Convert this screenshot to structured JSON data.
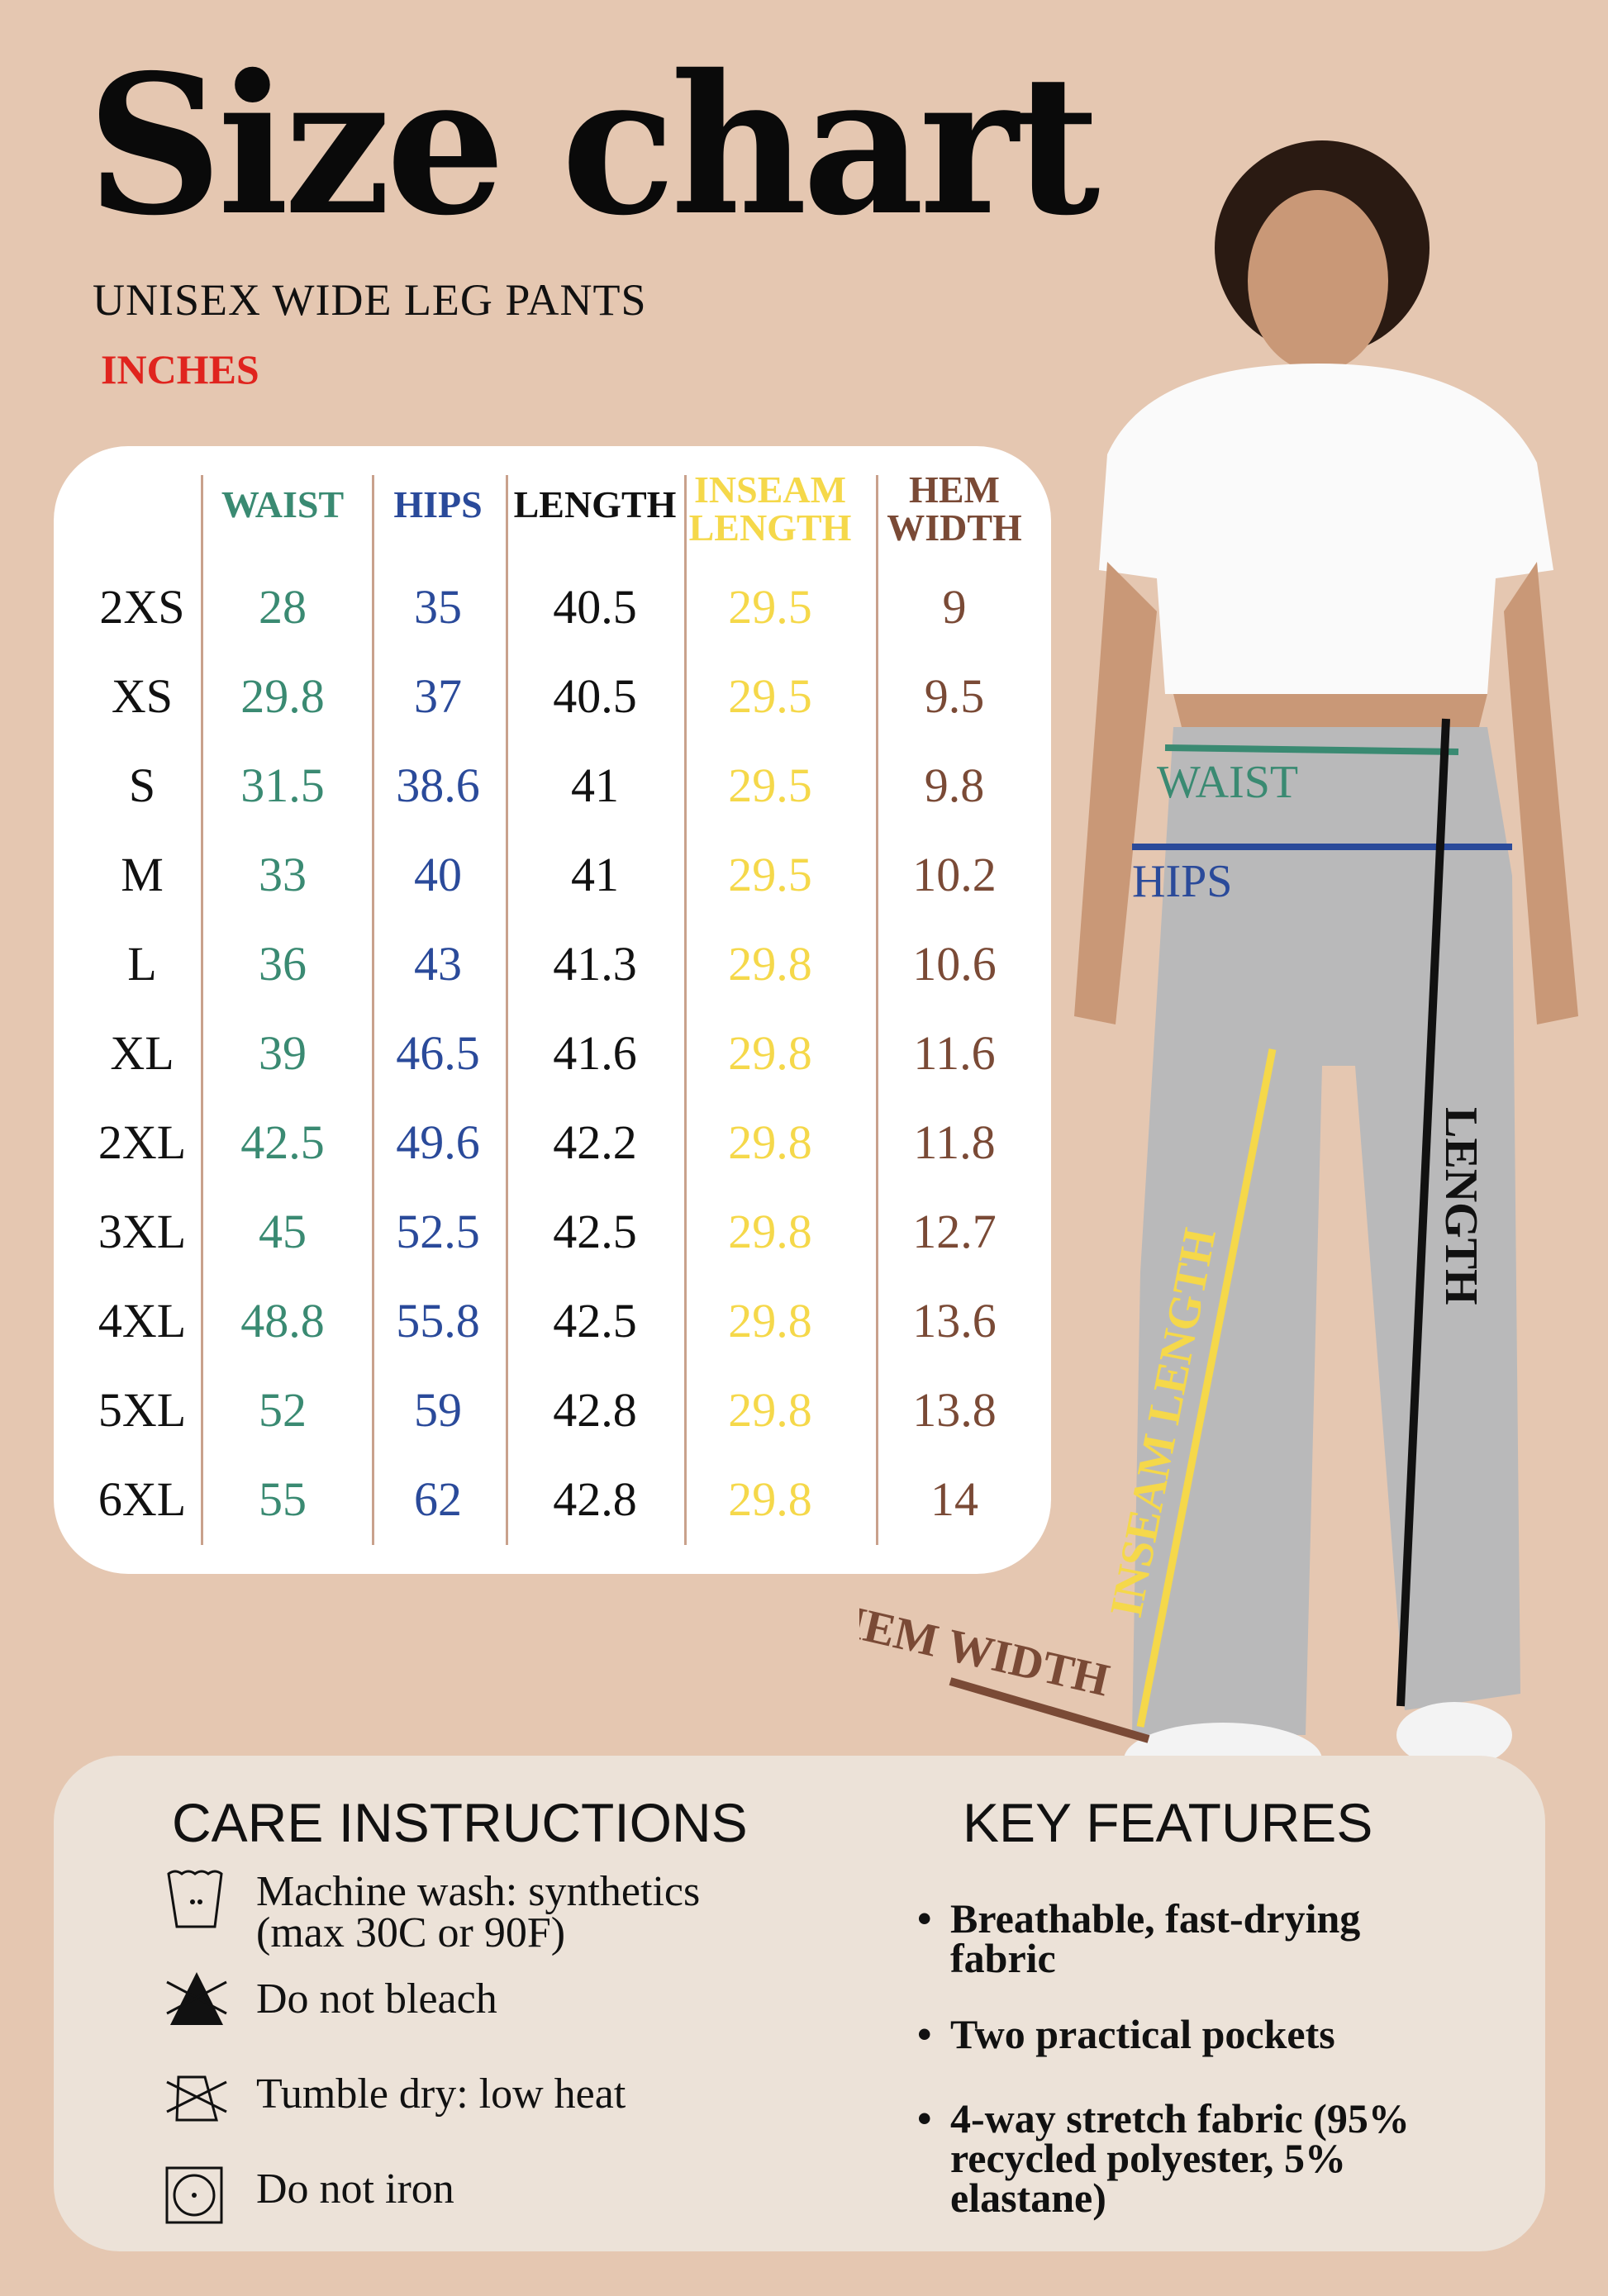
{
  "title": "Size chart",
  "subtitle": "UNISEX WIDE LEG PANTS",
  "units": "INCHES",
  "colors": {
    "background": "#e5c7b1",
    "waist": "#3a8a72",
    "hips": "#2a4a9a",
    "length": "#111111",
    "inseam": "#f5d84a",
    "hem": "#7a4a36",
    "units": "#e0241e"
  },
  "table": {
    "headers": [
      {
        "key": "waist",
        "lines": [
          "WAIST"
        ]
      },
      {
        "key": "hips",
        "lines": [
          "HIPS"
        ]
      },
      {
        "key": "length",
        "lines": [
          "LENGTH"
        ]
      },
      {
        "key": "inseam",
        "lines": [
          "INSEAM",
          "LENGTH"
        ]
      },
      {
        "key": "hem",
        "lines": [
          "HEM",
          "WIDTH"
        ]
      }
    ],
    "rows": [
      {
        "size": "2XS",
        "values": [
          "28",
          "35",
          "40.5",
          "29.5",
          "9"
        ]
      },
      {
        "size": "XS",
        "values": [
          "29.8",
          "37",
          "40.5",
          "29.5",
          "9.5"
        ]
      },
      {
        "size": "S",
        "values": [
          "31.5",
          "38.6",
          "41",
          "29.5",
          "9.8"
        ]
      },
      {
        "size": "M",
        "values": [
          "33",
          "40",
          "41",
          "29.5",
          "10.2"
        ]
      },
      {
        "size": "L",
        "values": [
          "36",
          "43",
          "41.3",
          "29.8",
          "10.6"
        ]
      },
      {
        "size": "XL",
        "values": [
          "39",
          "46.5",
          "41.6",
          "29.8",
          "11.6"
        ]
      },
      {
        "size": "2XL",
        "values": [
          "42.5",
          "49.6",
          "42.2",
          "29.8",
          "11.8"
        ]
      },
      {
        "size": "3XL",
        "values": [
          "45",
          "52.5",
          "42.5",
          "29.8",
          "12.7"
        ]
      },
      {
        "size": "4XL",
        "values": [
          "48.8",
          "55.8",
          "42.5",
          "29.8",
          "13.6"
        ]
      },
      {
        "size": "5XL",
        "values": [
          "52",
          "59",
          "42.8",
          "29.8",
          "13.8"
        ]
      },
      {
        "size": "6XL",
        "values": [
          "55",
          "62",
          "42.8",
          "29.8",
          "14"
        ]
      }
    ]
  },
  "figure_labels": {
    "waist": "WAIST",
    "hips": "HIPS",
    "length": "LENGTH",
    "inseam": "INSEAM LENGTH",
    "hem": "HEM WIDTH"
  },
  "care": {
    "title": "CARE INSTRUCTIONS",
    "items": [
      {
        "icon": "machine-wash-icon",
        "lines": [
          "Machine wash: synthetics",
          "(max 30C or 90F)"
        ]
      },
      {
        "icon": "do-not-bleach-icon",
        "lines": [
          "Do not bleach"
        ]
      },
      {
        "icon": "tumble-dry-low-icon",
        "lines": [
          "Tumble dry: low heat"
        ]
      },
      {
        "icon": "do-not-iron-icon",
        "lines": [
          "Do not iron"
        ]
      }
    ]
  },
  "features": {
    "title": "KEY FEATURES",
    "items": [
      [
        "Breathable, fast-drying",
        "fabric"
      ],
      [
        "Two practical pockets"
      ],
      [
        "4-way stretch fabric (95%",
        "recycled polyester, 5%",
        "elastane)"
      ]
    ]
  }
}
